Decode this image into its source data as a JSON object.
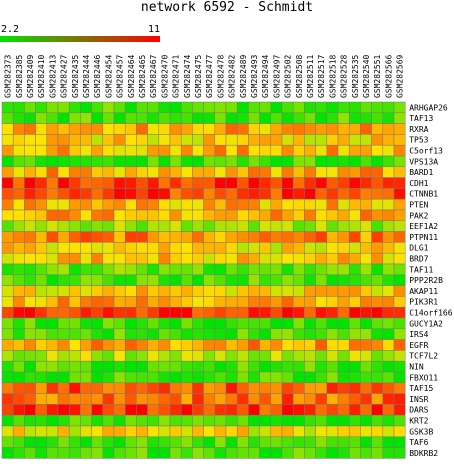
{
  "chart_data": {
    "type": "heatmap",
    "title": "network 6592 - Schmidt",
    "scale": {
      "min": 2.2,
      "max": 11,
      "min_label": "2.2",
      "max_label": "11",
      "low_color": "#00e400",
      "high_color": "#ff0000"
    },
    "columns": [
      "GSM282373",
      "GSM282385",
      "GSM282409",
      "GSM282410",
      "GSM282413",
      "GSM282427",
      "GSM282435",
      "GSM282444",
      "GSM282446",
      "GSM282454",
      "GSM282457",
      "GSM282464",
      "GSM282465",
      "GSM282467",
      "GSM282470",
      "GSM282471",
      "GSM282474",
      "GSM282475",
      "GSM282477",
      "GSM282478",
      "GSM282482",
      "GSM282489",
      "GSM282493",
      "GSM282494",
      "GSM282497",
      "GSM282502",
      "GSM282508",
      "GSM282511",
      "GSM282517",
      "GSM282518",
      "GSM282528",
      "GSM282535",
      "GSM282540",
      "GSM282551",
      "GSM282566",
      "GSM282569"
    ],
    "rows": [
      "ARHGAP26",
      "TAF13",
      "RXRA",
      "TP53",
      "C5orf13",
      "VPS13A",
      "BARD1",
      "CDH1",
      "CTNNB1",
      "PTEN",
      "PAK2",
      "EEF1A2",
      "PTPN11",
      "DLG1",
      "BRD7",
      "TAF11",
      "PPP2R2B",
      "AKAP11",
      "PIK3R1",
      "C14orf166",
      "GUCY1A2",
      "IRS4",
      "EGFR",
      "TCF7L2",
      "NIN",
      "FBXO11",
      "TAF15",
      "INSR",
      "DARS",
      "KRT2",
      "GSK3B",
      "TAF6",
      "BDKRB2"
    ],
    "row_levels": [
      0.12,
      0.12,
      0.62,
      0.52,
      0.6,
      0.1,
      0.62,
      0.9,
      0.88,
      0.6,
      0.62,
      0.3,
      0.7,
      0.5,
      0.55,
      0.18,
      0.12,
      0.52,
      0.62,
      0.92,
      0.1,
      0.12,
      0.65,
      0.35,
      0.12,
      0.12,
      0.8,
      0.78,
      0.9,
      0.1,
      0.48,
      0.1,
      0.12
    ]
  }
}
